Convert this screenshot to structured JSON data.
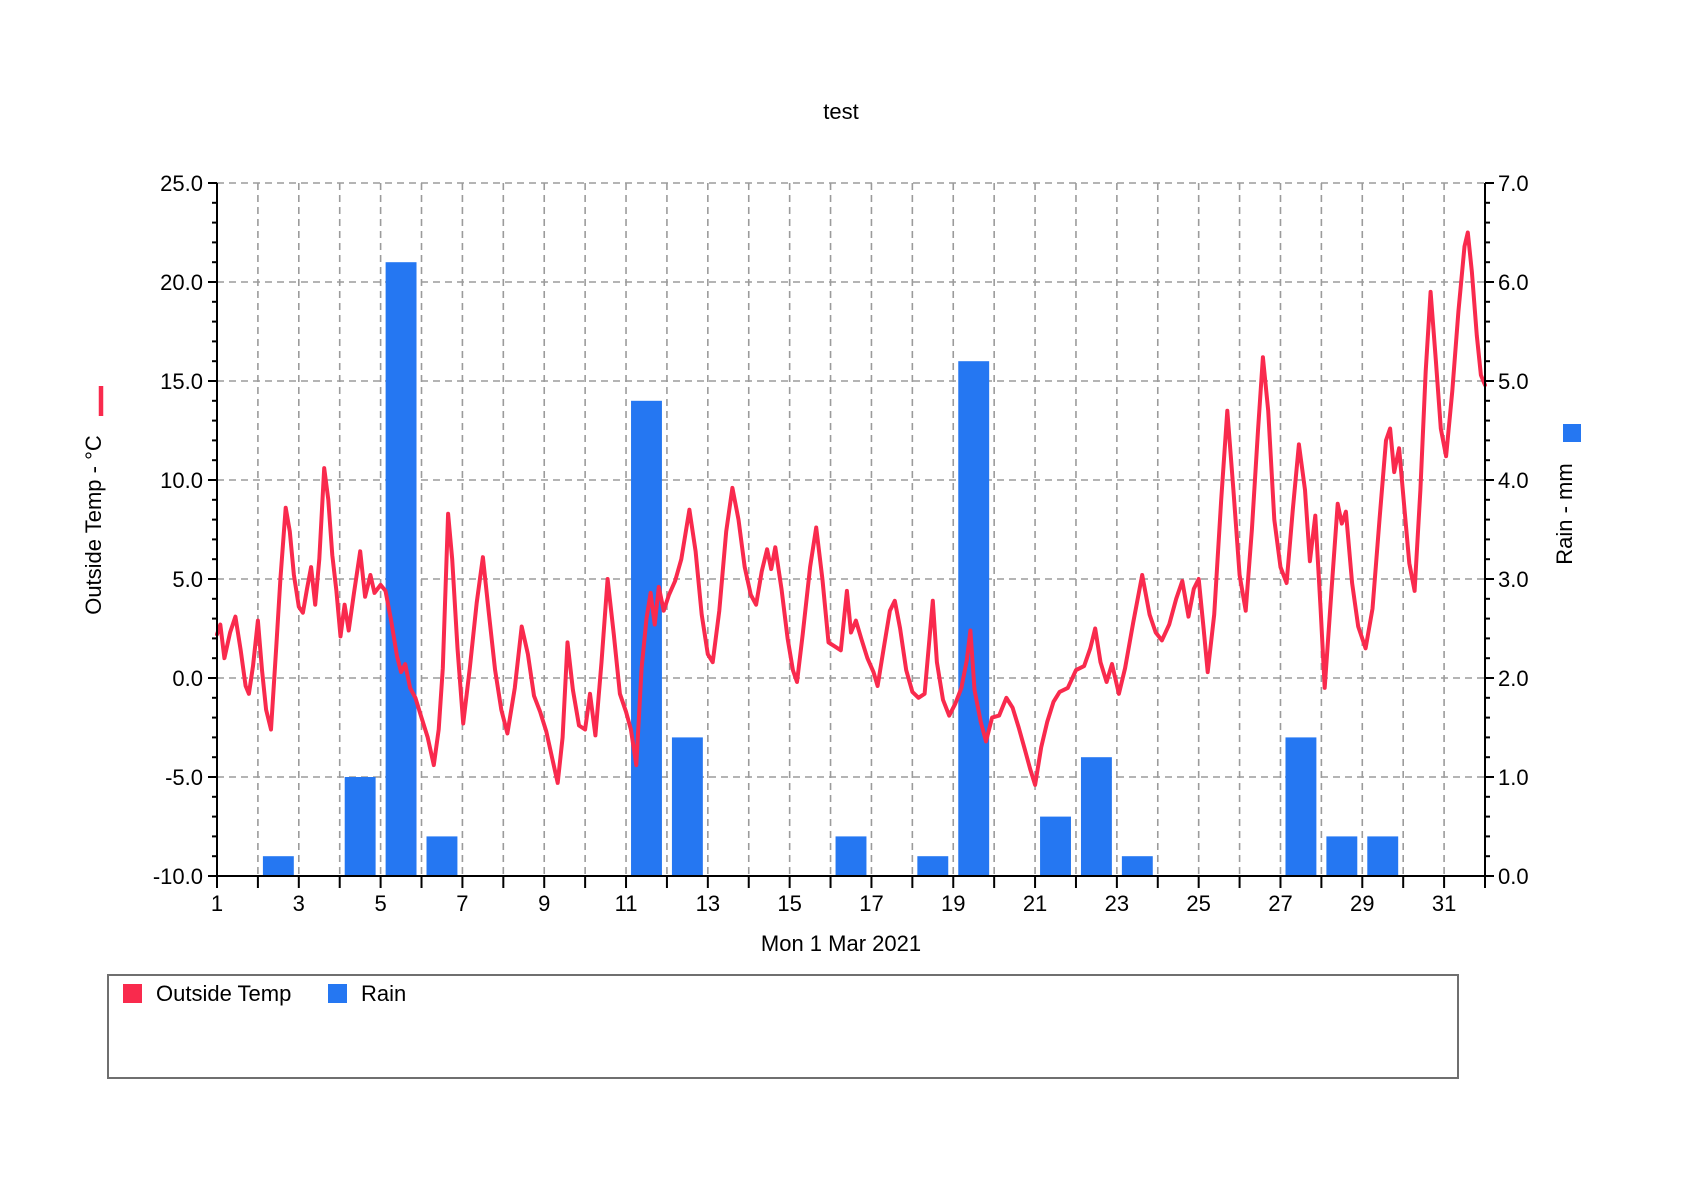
{
  "title": "test",
  "legend": {
    "items": [
      {
        "label": "Outside Temp",
        "color": "#f92a4d"
      },
      {
        "label": "Rain",
        "color": "#2577f2"
      }
    ]
  },
  "chart_data": {
    "type": "line+bar",
    "title": "test",
    "grid": true,
    "x_axis": {
      "title": "Mon 1 Mar 2021",
      "range": [
        1,
        32
      ],
      "day_tick_step": 1,
      "label_ticks": [
        {
          "v": 1,
          "label": "1"
        },
        {
          "v": 3,
          "label": "3"
        },
        {
          "v": 5,
          "label": "5"
        },
        {
          "v": 7,
          "label": "7"
        },
        {
          "v": 9,
          "label": "9"
        },
        {
          "v": 11,
          "label": "11"
        },
        {
          "v": 13,
          "label": "13"
        },
        {
          "v": 15,
          "label": "15"
        },
        {
          "v": 17,
          "label": "17"
        },
        {
          "v": 19,
          "label": "19"
        },
        {
          "v": 21,
          "label": "21"
        },
        {
          "v": 23,
          "label": "23"
        },
        {
          "v": 25,
          "label": "25"
        },
        {
          "v": 27,
          "label": "27"
        },
        {
          "v": 29,
          "label": "29"
        },
        {
          "v": 31,
          "label": "31"
        }
      ]
    },
    "y_left": {
      "label": "Outside Temp - °C",
      "range": [
        -10,
        25
      ],
      "minor_step": 1,
      "ticks": [
        {
          "v": 25,
          "label": "25.0"
        },
        {
          "v": 20,
          "label": "20.0"
        },
        {
          "v": 15,
          "label": "15.0"
        },
        {
          "v": 10,
          "label": "10.0"
        },
        {
          "v": 5,
          "label": "5.0"
        },
        {
          "v": 0,
          "label": "0.0"
        },
        {
          "v": -5,
          "label": "-5.0"
        },
        {
          "v": -10,
          "label": "-10.0"
        }
      ]
    },
    "y_right": {
      "label": "Rain - mm",
      "range": [
        0,
        7
      ],
      "minor_step": 0.2,
      "ticks": [
        {
          "v": 7,
          "label": "7.0"
        },
        {
          "v": 6,
          "label": "6.0"
        },
        {
          "v": 5,
          "label": "5.0"
        },
        {
          "v": 4,
          "label": "4.0"
        },
        {
          "v": 3,
          "label": "3.0"
        },
        {
          "v": 2,
          "label": "2.0"
        },
        {
          "v": 1,
          "label": "1.0"
        },
        {
          "v": 0,
          "label": "0.0"
        }
      ]
    },
    "series": [
      {
        "name": "Outside Temp",
        "type": "line",
        "axis": "left",
        "unit": "°C",
        "color": "#f92a4d",
        "points": [
          [
            1.0,
            2.2
          ],
          [
            1.08,
            2.7
          ],
          [
            1.18,
            1.0
          ],
          [
            1.32,
            2.3
          ],
          [
            1.45,
            3.1
          ],
          [
            1.58,
            1.4
          ],
          [
            1.7,
            -0.4
          ],
          [
            1.78,
            -0.8
          ],
          [
            1.88,
            0.6
          ],
          [
            2.0,
            2.9
          ],
          [
            2.1,
            0.4
          ],
          [
            2.2,
            -1.6
          ],
          [
            2.32,
            -2.6
          ],
          [
            2.45,
            1.6
          ],
          [
            2.55,
            5.0
          ],
          [
            2.68,
            8.6
          ],
          [
            2.78,
            7.4
          ],
          [
            2.88,
            5.2
          ],
          [
            3.0,
            3.6
          ],
          [
            3.1,
            3.3
          ],
          [
            3.2,
            4.5
          ],
          [
            3.3,
            5.6
          ],
          [
            3.4,
            3.7
          ],
          [
            3.5,
            6.0
          ],
          [
            3.62,
            10.6
          ],
          [
            3.72,
            9.0
          ],
          [
            3.82,
            6.2
          ],
          [
            3.92,
            4.4
          ],
          [
            4.02,
            2.1
          ],
          [
            4.12,
            3.7
          ],
          [
            4.22,
            2.4
          ],
          [
            4.35,
            4.3
          ],
          [
            4.5,
            6.4
          ],
          [
            4.62,
            4.1
          ],
          [
            4.75,
            5.2
          ],
          [
            4.85,
            4.3
          ],
          [
            5.0,
            4.7
          ],
          [
            5.12,
            4.4
          ],
          [
            5.25,
            3.0
          ],
          [
            5.4,
            1.1
          ],
          [
            5.5,
            0.3
          ],
          [
            5.6,
            0.7
          ],
          [
            5.72,
            -0.5
          ],
          [
            5.85,
            -1.0
          ],
          [
            6.0,
            -2.0
          ],
          [
            6.15,
            -3.0
          ],
          [
            6.3,
            -4.4
          ],
          [
            6.42,
            -2.6
          ],
          [
            6.52,
            0.5
          ],
          [
            6.65,
            8.3
          ],
          [
            6.75,
            6.0
          ],
          [
            6.88,
            1.5
          ],
          [
            7.02,
            -2.3
          ],
          [
            7.18,
            0.5
          ],
          [
            7.35,
            3.8
          ],
          [
            7.5,
            6.1
          ],
          [
            7.65,
            3.2
          ],
          [
            7.8,
            0.4
          ],
          [
            7.95,
            -1.6
          ],
          [
            8.1,
            -2.8
          ],
          [
            8.28,
            -0.5
          ],
          [
            8.45,
            2.6
          ],
          [
            8.6,
            1.2
          ],
          [
            8.75,
            -0.9
          ],
          [
            8.9,
            -1.7
          ],
          [
            9.05,
            -2.7
          ],
          [
            9.2,
            -4.1
          ],
          [
            9.33,
            -5.3
          ],
          [
            9.45,
            -3.0
          ],
          [
            9.57,
            1.8
          ],
          [
            9.7,
            -0.6
          ],
          [
            9.85,
            -2.4
          ],
          [
            10.0,
            -2.6
          ],
          [
            10.12,
            -0.8
          ],
          [
            10.25,
            -2.9
          ],
          [
            10.4,
            0.8
          ],
          [
            10.55,
            5.0
          ],
          [
            10.7,
            2.2
          ],
          [
            10.85,
            -0.8
          ],
          [
            11.0,
            -1.7
          ],
          [
            11.12,
            -2.6
          ],
          [
            11.25,
            -4.4
          ],
          [
            11.38,
            0.5
          ],
          [
            11.5,
            3.0
          ],
          [
            11.6,
            4.3
          ],
          [
            11.7,
            2.7
          ],
          [
            11.8,
            4.6
          ],
          [
            11.92,
            3.4
          ],
          [
            12.05,
            4.2
          ],
          [
            12.2,
            4.9
          ],
          [
            12.35,
            6.0
          ],
          [
            12.55,
            8.5
          ],
          [
            12.7,
            6.4
          ],
          [
            12.85,
            3.2
          ],
          [
            13.0,
            1.2
          ],
          [
            13.12,
            0.8
          ],
          [
            13.28,
            3.4
          ],
          [
            13.45,
            7.4
          ],
          [
            13.6,
            9.6
          ],
          [
            13.75,
            8.0
          ],
          [
            13.9,
            5.6
          ],
          [
            14.05,
            4.2
          ],
          [
            14.18,
            3.7
          ],
          [
            14.32,
            5.4
          ],
          [
            14.45,
            6.5
          ],
          [
            14.55,
            5.5
          ],
          [
            14.65,
            6.6
          ],
          [
            14.8,
            4.5
          ],
          [
            14.95,
            2.0
          ],
          [
            15.08,
            0.4
          ],
          [
            15.18,
            -0.2
          ],
          [
            15.32,
            2.2
          ],
          [
            15.5,
            5.6
          ],
          [
            15.65,
            7.6
          ],
          [
            15.8,
            5.0
          ],
          [
            15.95,
            1.8
          ],
          [
            16.1,
            1.6
          ],
          [
            16.25,
            1.4
          ],
          [
            16.4,
            4.4
          ],
          [
            16.5,
            2.3
          ],
          [
            16.62,
            2.9
          ],
          [
            16.75,
            2.0
          ],
          [
            16.9,
            1.0
          ],
          [
            17.05,
            0.3
          ],
          [
            17.15,
            -0.4
          ],
          [
            17.3,
            1.5
          ],
          [
            17.45,
            3.4
          ],
          [
            17.57,
            3.9
          ],
          [
            17.7,
            2.5
          ],
          [
            17.85,
            0.4
          ],
          [
            18.0,
            -0.7
          ],
          [
            18.15,
            -1.0
          ],
          [
            18.3,
            -0.8
          ],
          [
            18.42,
            2.0
          ],
          [
            18.5,
            3.9
          ],
          [
            18.6,
            0.8
          ],
          [
            18.75,
            -1.1
          ],
          [
            18.9,
            -1.9
          ],
          [
            19.05,
            -1.3
          ],
          [
            19.2,
            -0.5
          ],
          [
            19.33,
            0.9
          ],
          [
            19.42,
            2.4
          ],
          [
            19.52,
            -0.6
          ],
          [
            19.67,
            -2.2
          ],
          [
            19.8,
            -3.2
          ],
          [
            19.95,
            -2.0
          ],
          [
            20.12,
            -1.9
          ],
          [
            20.3,
            -1.0
          ],
          [
            20.45,
            -1.5
          ],
          [
            20.6,
            -2.5
          ],
          [
            20.75,
            -3.6
          ],
          [
            20.88,
            -4.6
          ],
          [
            21.0,
            -5.4
          ],
          [
            21.15,
            -3.5
          ],
          [
            21.3,
            -2.2
          ],
          [
            21.45,
            -1.2
          ],
          [
            21.6,
            -0.7
          ],
          [
            21.8,
            -0.5
          ],
          [
            22.0,
            0.4
          ],
          [
            22.2,
            0.6
          ],
          [
            22.35,
            1.5
          ],
          [
            22.47,
            2.5
          ],
          [
            22.6,
            0.8
          ],
          [
            22.75,
            -0.2
          ],
          [
            22.88,
            0.7
          ],
          [
            23.05,
            -0.8
          ],
          [
            23.2,
            0.5
          ],
          [
            23.4,
            2.8
          ],
          [
            23.62,
            5.2
          ],
          [
            23.8,
            3.2
          ],
          [
            23.95,
            2.3
          ],
          [
            24.1,
            1.9
          ],
          [
            24.28,
            2.7
          ],
          [
            24.45,
            4.0
          ],
          [
            24.6,
            4.9
          ],
          [
            24.75,
            3.1
          ],
          [
            24.88,
            4.5
          ],
          [
            25.0,
            5.0
          ],
          [
            25.12,
            2.5
          ],
          [
            25.22,
            0.3
          ],
          [
            25.38,
            3.2
          ],
          [
            25.55,
            9.0
          ],
          [
            25.7,
            13.5
          ],
          [
            25.85,
            9.5
          ],
          [
            26.0,
            5.2
          ],
          [
            26.15,
            3.4
          ],
          [
            26.3,
            7.5
          ],
          [
            26.45,
            12.5
          ],
          [
            26.57,
            16.2
          ],
          [
            26.7,
            13.5
          ],
          [
            26.85,
            8.0
          ],
          [
            27.0,
            5.6
          ],
          [
            27.15,
            4.8
          ],
          [
            27.3,
            8.5
          ],
          [
            27.45,
            11.8
          ],
          [
            27.6,
            9.5
          ],
          [
            27.72,
            5.9
          ],
          [
            27.85,
            8.2
          ],
          [
            27.98,
            3.5
          ],
          [
            28.08,
            -0.5
          ],
          [
            28.25,
            4.5
          ],
          [
            28.4,
            8.8
          ],
          [
            28.5,
            7.8
          ],
          [
            28.6,
            8.4
          ],
          [
            28.75,
            4.8
          ],
          [
            28.9,
            2.6
          ],
          [
            29.08,
            1.5
          ],
          [
            29.25,
            3.5
          ],
          [
            29.42,
            8.0
          ],
          [
            29.58,
            12.0
          ],
          [
            29.68,
            12.6
          ],
          [
            29.78,
            10.4
          ],
          [
            29.9,
            11.6
          ],
          [
            30.02,
            8.8
          ],
          [
            30.15,
            5.8
          ],
          [
            30.28,
            4.4
          ],
          [
            30.42,
            9.5
          ],
          [
            30.55,
            15.5
          ],
          [
            30.67,
            19.5
          ],
          [
            30.8,
            16.0
          ],
          [
            30.92,
            12.6
          ],
          [
            31.05,
            11.2
          ],
          [
            31.2,
            14.5
          ],
          [
            31.35,
            18.5
          ],
          [
            31.5,
            21.8
          ],
          [
            31.58,
            22.5
          ],
          [
            31.68,
            20.5
          ],
          [
            31.8,
            17.3
          ],
          [
            31.9,
            15.3
          ],
          [
            32.0,
            14.8
          ]
        ]
      },
      {
        "name": "Rain",
        "type": "bar",
        "axis": "right",
        "unit": "mm",
        "color": "#2577f2",
        "bars": [
          {
            "day": 2,
            "mm": 0.2
          },
          {
            "day": 4,
            "mm": 1.0
          },
          {
            "day": 5,
            "mm": 6.2
          },
          {
            "day": 6,
            "mm": 0.4
          },
          {
            "day": 11,
            "mm": 4.8
          },
          {
            "day": 12,
            "mm": 1.4
          },
          {
            "day": 16,
            "mm": 0.4
          },
          {
            "day": 18,
            "mm": 0.2
          },
          {
            "day": 19,
            "mm": 5.2
          },
          {
            "day": 21,
            "mm": 0.6
          },
          {
            "day": 22,
            "mm": 1.2
          },
          {
            "day": 23,
            "mm": 0.2
          },
          {
            "day": 27,
            "mm": 1.4
          },
          {
            "day": 28,
            "mm": 0.4
          },
          {
            "day": 29,
            "mm": 0.4
          }
        ]
      }
    ]
  }
}
